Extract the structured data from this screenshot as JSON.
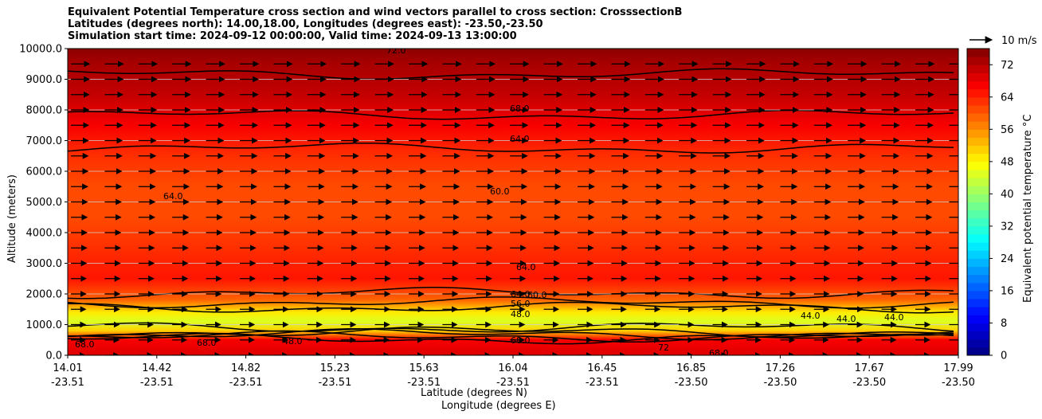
{
  "title_lines": [
    "Equivalent Potential Temperature cross section and wind vectors parallel to cross section: CrosssectionB",
    "Latitudes (degrees north): 14.00,18.00, Longitudes (degrees east): -23.50,-23.50",
    "Simulation start time: 2024-09-12 00:00:00, Valid time: 2024-09-13 13:00:00"
  ],
  "xlabel_lat": "Latitude (degrees N)",
  "xlabel_lon": "Longitude (degrees E)",
  "ylabel": "Altitude (meters)",
  "colorbar_label": "Equivalent potential temperature °C",
  "quiver_key_label": "10 m/s",
  "chart_data": {
    "type": "heatmap",
    "x_ticks_lat": [
      "14.01",
      "14.42",
      "14.82",
      "15.23",
      "15.63",
      "16.04",
      "16.45",
      "16.85",
      "17.26",
      "17.67",
      "17.99"
    ],
    "x_ticks_lon": [
      "-23.51",
      "-23.51",
      "-23.51",
      "-23.51",
      "-23.51",
      "-23.51",
      "-23.51",
      "-23.50",
      "-23.50",
      "-23.50",
      "-23.50"
    ],
    "xlim": [
      14.01,
      17.99
    ],
    "ylim": [
      0,
      10000
    ],
    "y_ticks": [
      "0.0",
      "1000.0",
      "2000.0",
      "3000.0",
      "4000.0",
      "5000.0",
      "6000.0",
      "7000.0",
      "8000.0",
      "9000.0",
      "10000.0"
    ],
    "y_tick_values": [
      0,
      1000,
      2000,
      3000,
      4000,
      5000,
      6000,
      7000,
      8000,
      9000,
      10000
    ],
    "grid": "horizontal",
    "colorbar": {
      "min": 0,
      "max": 76,
      "ticks": [
        "0",
        "8",
        "16",
        "24",
        "32",
        "40",
        "48",
        "56",
        "64",
        "72"
      ],
      "tick_values": [
        0,
        8,
        16,
        24,
        32,
        40,
        48,
        56,
        64,
        72
      ],
      "colormap": "jet"
    },
    "theta_e_profile": [
      {
        "alt": 0,
        "value": 68
      },
      {
        "alt": 500,
        "value": 66
      },
      {
        "alt": 800,
        "value": 50
      },
      {
        "alt": 1100,
        "value": 44
      },
      {
        "alt": 1400,
        "value": 48
      },
      {
        "alt": 1800,
        "value": 58
      },
      {
        "alt": 2500,
        "value": 64
      },
      {
        "alt": 3500,
        "value": 62
      },
      {
        "alt": 4500,
        "value": 60
      },
      {
        "alt": 5500,
        "value": 61
      },
      {
        "alt": 6500,
        "value": 63
      },
      {
        "alt": 7500,
        "value": 67
      },
      {
        "alt": 8500,
        "value": 70
      },
      {
        "alt": 9500,
        "value": 73
      },
      {
        "alt": 10000,
        "value": 74
      }
    ],
    "contour_labels": [
      {
        "text": "72.0"
      },
      {
        "text": "68.0"
      },
      {
        "text": "64.0"
      },
      {
        "text": "64.0"
      },
      {
        "text": "60.0"
      },
      {
        "text": "64.0"
      },
      {
        "text": "64.0"
      },
      {
        "text": "60.0"
      },
      {
        "text": "56.0"
      },
      {
        "text": "48.0"
      },
      {
        "text": "44.0"
      },
      {
        "text": "44.0"
      },
      {
        "text": "44.0"
      },
      {
        "text": "68.0"
      },
      {
        "text": "68.0"
      },
      {
        "text": "68.0"
      },
      {
        "text": "72"
      },
      {
        "text": "48.0"
      },
      {
        "text": "68.0"
      }
    ],
    "wind": {
      "direction": "parallel to cross section, toward increasing latitude",
      "reference_speed_ms": 10
    }
  }
}
